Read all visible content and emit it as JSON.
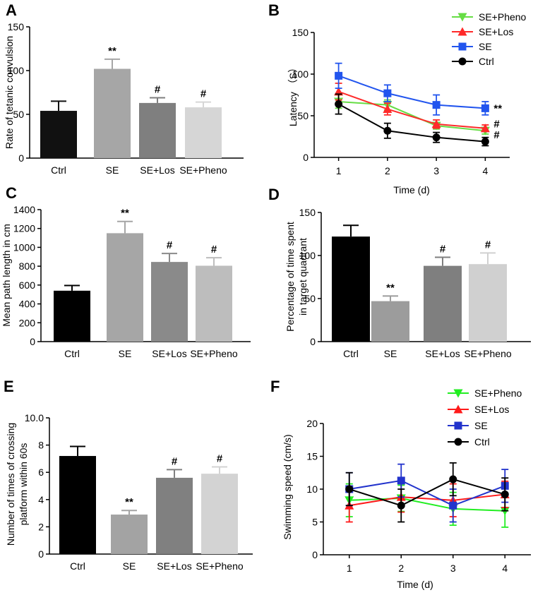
{
  "chart_data": [
    {
      "id": "A",
      "type": "bar",
      "panel_label": "A",
      "categories": [
        "Ctrl",
        "SE",
        "SE+Los",
        "SE+Pheno"
      ],
      "values": [
        54,
        102,
        63,
        58
      ],
      "errors": [
        11,
        11,
        6,
        6
      ],
      "colors": [
        "#111111",
        "#a6a6a6",
        "#7f7f7f",
        "#d6d6d6"
      ],
      "annotations": [
        "",
        "**",
        "#",
        "#"
      ],
      "ylabel": "Rate of tetanic convulsion",
      "ylim": [
        0,
        150
      ],
      "yticks": [
        0,
        50,
        100,
        150
      ]
    },
    {
      "id": "B",
      "type": "line",
      "panel_label": "B",
      "x": [
        1,
        2,
        3,
        4
      ],
      "xlim": [
        0.5,
        4.5
      ],
      "series": [
        {
          "name": "SE+Pheno",
          "values": [
            67,
            63,
            38,
            32
          ],
          "errors": [
            8,
            6,
            4,
            4
          ],
          "color": "#66dd44",
          "marker": "triangle-down"
        },
        {
          "name": "SE+Los",
          "values": [
            79,
            58,
            40,
            35
          ],
          "errors": [
            10,
            7,
            5,
            4
          ],
          "color": "#ff2a2a",
          "marker": "triangle-up"
        },
        {
          "name": "SE",
          "values": [
            98,
            77,
            63,
            59
          ],
          "errors": [
            15,
            10,
            12,
            8
          ],
          "color": "#2255ee",
          "marker": "square"
        },
        {
          "name": "Ctrl",
          "values": [
            64,
            32,
            24,
            19
          ],
          "errors": [
            12,
            9,
            6,
            5
          ],
          "color": "#000000",
          "marker": "circle"
        }
      ],
      "end_annotations": [
        "**",
        "#",
        "#"
      ],
      "xlabel": "Time (d)",
      "ylabel": "Latency （S）",
      "ylim": [
        0,
        150
      ],
      "yticks": [
        0,
        50,
        100,
        150
      ],
      "xticks": [
        1,
        2,
        3,
        4
      ]
    },
    {
      "id": "C",
      "type": "bar",
      "panel_label": "C",
      "categories": [
        "Ctrl",
        "SE",
        "SE+Los",
        "SE+Pheno"
      ],
      "values": [
        540,
        1150,
        845,
        805
      ],
      "errors": [
        55,
        125,
        90,
        85
      ],
      "colors": [
        "#000000",
        "#a6a6a6",
        "#8a8a8a",
        "#bdbdbd"
      ],
      "annotations": [
        "",
        "**",
        "#",
        "#"
      ],
      "ylabel": "Mean path length in cm",
      "ylim": [
        0,
        1400
      ],
      "yticks": [
        0,
        200,
        400,
        600,
        800,
        1000,
        1200,
        1400
      ]
    },
    {
      "id": "D",
      "type": "bar",
      "panel_label": "D",
      "categories": [
        "Ctrl",
        "SE",
        "SE+Los",
        "SE+Pheno"
      ],
      "values": [
        122,
        47,
        88,
        90
      ],
      "errors": [
        13,
        6,
        10,
        13
      ],
      "colors": [
        "#000000",
        "#9c9c9c",
        "#7f7f7f",
        "#d0d0d0"
      ],
      "annotations": [
        "",
        "**",
        "#",
        "#"
      ],
      "ylabel_lines": [
        "Percentage of time spent",
        "in target quadrant"
      ],
      "ylim": [
        0,
        150
      ],
      "yticks": [
        0,
        50,
        100,
        150
      ]
    },
    {
      "id": "E",
      "type": "bar",
      "panel_label": "E",
      "categories": [
        "Ctrl",
        "SE",
        "SE+Los",
        "SE+Pheno"
      ],
      "values": [
        7.2,
        2.9,
        5.6,
        5.9
      ],
      "errors": [
        0.7,
        0.3,
        0.6,
        0.5
      ],
      "colors": [
        "#000000",
        "#a3a3a3",
        "#808080",
        "#d3d3d3"
      ],
      "annotations": [
        "",
        "**",
        "#",
        "#"
      ],
      "ylabel_lines": [
        "Number of times of crossing",
        "platform within 60s"
      ],
      "ylim": [
        0,
        10
      ],
      "yticks": [
        "0",
        "2",
        "4",
        "6",
        "8",
        "10.0"
      ],
      "ytick_values": [
        0,
        2,
        4,
        6,
        8,
        10
      ]
    },
    {
      "id": "F",
      "type": "line",
      "panel_label": "F",
      "x": [
        1,
        2,
        3,
        4
      ],
      "xlim": [
        0.5,
        4.5
      ],
      "series": [
        {
          "name": "SE+Pheno",
          "values": [
            8.3,
            8.6,
            7.0,
            6.7
          ],
          "errors": [
            2.5,
            2.0,
            2.5,
            2.5
          ],
          "color": "#22ee22",
          "marker": "triangle-down"
        },
        {
          "name": "SE+Los",
          "values": [
            7.5,
            8.8,
            8.3,
            9.2
          ],
          "errors": [
            2.5,
            2.3,
            2.5,
            2.0
          ],
          "color": "#ff1a1a",
          "marker": "triangle-up"
        },
        {
          "name": "SE",
          "values": [
            10.0,
            11.3,
            7.5,
            10.5
          ],
          "errors": [
            2.5,
            2.5,
            2.5,
            2.5
          ],
          "color": "#2233cc",
          "marker": "square"
        },
        {
          "name": "Ctrl",
          "values": [
            10.0,
            7.5,
            11.5,
            9.2
          ],
          "errors": [
            2.5,
            2.5,
            2.5,
            2.5
          ],
          "color": "#000000",
          "marker": "circle"
        }
      ],
      "xlabel": "Time (d)",
      "ylabel": "Swimming speed (cm/s)",
      "ylim": [
        0,
        20
      ],
      "yticks": [
        0,
        5,
        10,
        15,
        20
      ],
      "xticks": [
        1,
        2,
        3,
        4
      ]
    }
  ]
}
